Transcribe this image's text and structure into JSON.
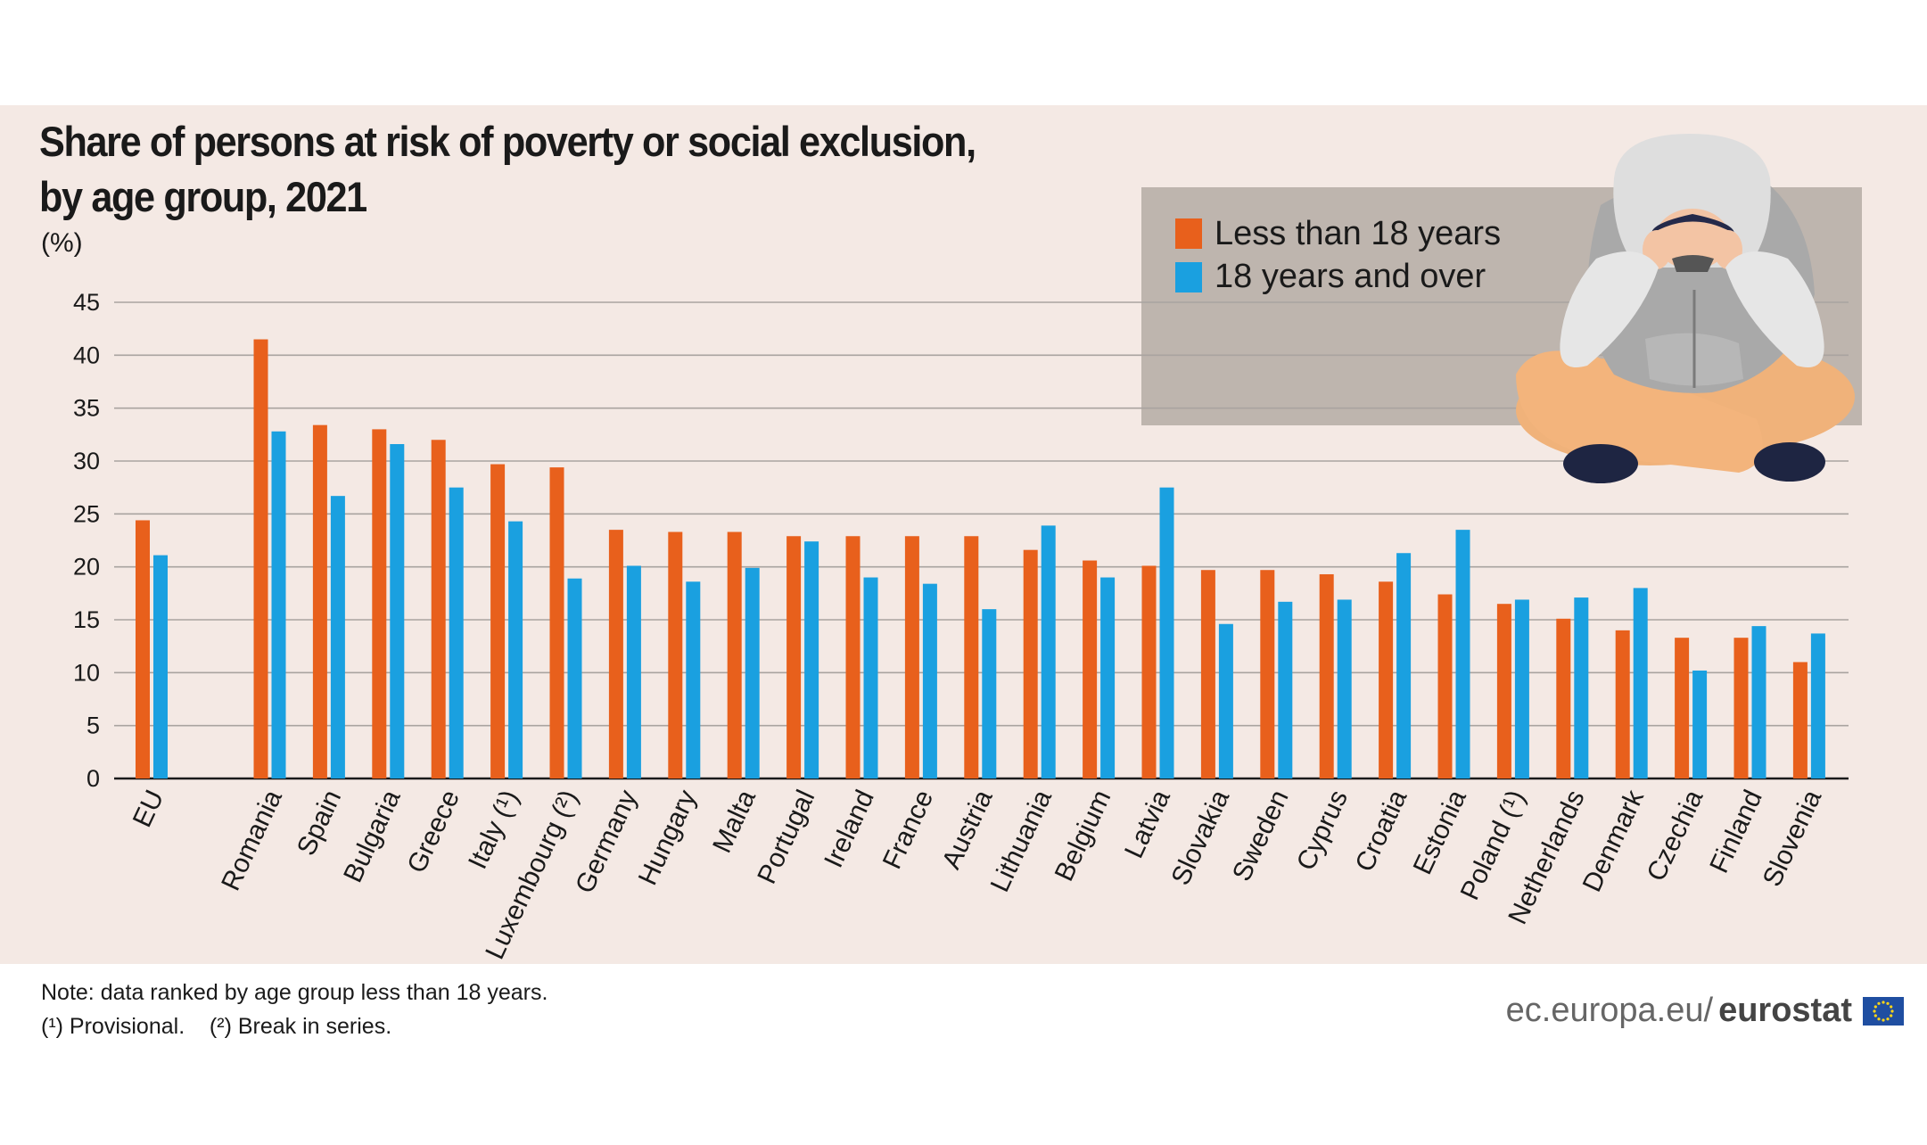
{
  "header": {
    "title_line1": "Share of persons at risk of poverty or social exclusion,",
    "title_line2": "by age group, 2021",
    "unit": "(%)"
  },
  "chart_data": {
    "type": "bar",
    "title": "Share of persons at risk of poverty or social exclusion, by age group, 2021",
    "ylabel": "(%)",
    "ylim": [
      0,
      45
    ],
    "yticks": [
      0,
      5,
      10,
      15,
      20,
      25,
      30,
      35,
      40,
      45
    ],
    "grid": true,
    "legend_position": "top-right",
    "categories": [
      "EU",
      "Romania",
      "Spain",
      "Bulgaria",
      "Greece",
      "Italy (¹)",
      "Luxembourg (²)",
      "Germany",
      "Hungary",
      "Malta",
      "Portugal",
      "Ireland",
      "France",
      "Austria",
      "Lithuania",
      "Belgium",
      "Latvia",
      "Slovakia",
      "Sweden",
      "Cyprus",
      "Croatia",
      "Estonia",
      "Poland (¹)",
      "Netherlands",
      "Denmark",
      "Czechia",
      "Finland",
      "Slovenia"
    ],
    "series": [
      {
        "name": "Less than 18 years",
        "color": "#e8601c",
        "values": [
          24.4,
          41.5,
          33.4,
          33.0,
          32.0,
          29.7,
          29.4,
          23.5,
          23.3,
          23.3,
          22.9,
          22.9,
          22.9,
          22.9,
          21.6,
          20.6,
          20.1,
          19.7,
          19.7,
          19.3,
          18.6,
          17.4,
          16.5,
          15.1,
          14.0,
          13.3,
          13.3,
          11.0
        ]
      },
      {
        "name": "18 years and over",
        "color": "#1aa0e0",
        "values": [
          21.1,
          32.8,
          26.7,
          31.6,
          27.5,
          24.3,
          18.9,
          20.1,
          18.6,
          19.9,
          22.4,
          19.0,
          18.4,
          16.0,
          23.9,
          19.0,
          27.5,
          14.6,
          16.7,
          16.9,
          21.3,
          23.5,
          16.9,
          17.1,
          18.0,
          10.2,
          14.4,
          13.7
        ]
      }
    ]
  },
  "notes": {
    "line1": "Note: data ranked by age group less than 18 years.",
    "line2": "(¹) Provisional.    (²) Break in series."
  },
  "brand": {
    "site": "ec.europa.eu/",
    "name": "eurostat"
  },
  "colors": {
    "background_panel": "#f4e9e4",
    "legend_box": "#beb5ae",
    "orange": "#e8601c",
    "blue": "#1aa0e0"
  }
}
